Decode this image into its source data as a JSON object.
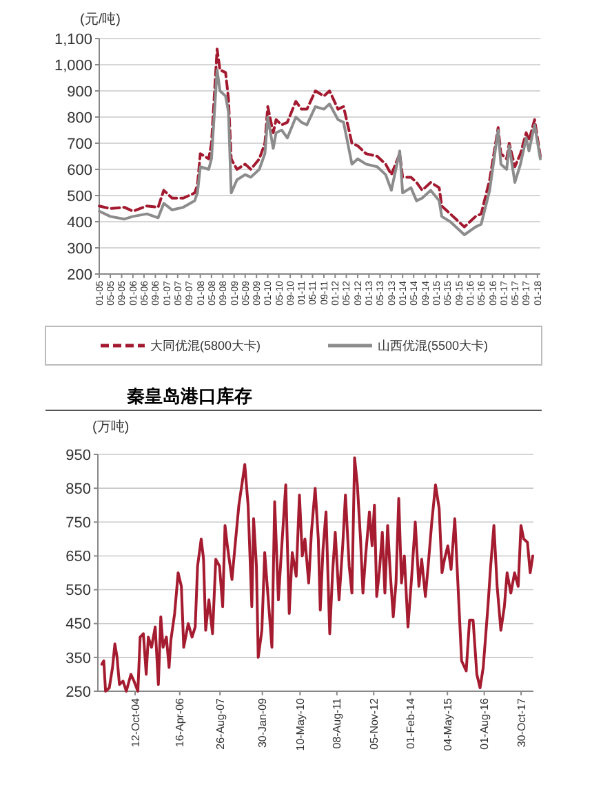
{
  "chart_data": [
    {
      "type": "line",
      "ylabel": "(元/吨)",
      "x": [
        "2005-01",
        "2005-05",
        "2005-10",
        "2006-01",
        "2006-06",
        "2006-10",
        "2006-12",
        "2007-03",
        "2007-07",
        "2007-11",
        "2007-12",
        "2008-01",
        "2008-04",
        "2008-05",
        "2008-07",
        "2008-08",
        "2008-10",
        "2008-11",
        "2008-12",
        "2009-02",
        "2009-05",
        "2009-07",
        "2009-10",
        "2009-12",
        "2010-01",
        "2010-03",
        "2010-04",
        "2010-06",
        "2010-08",
        "2010-11",
        "2011-01",
        "2011-03",
        "2011-06",
        "2011-09",
        "2011-11",
        "2012-02",
        "2012-04",
        "2012-07",
        "2012-09",
        "2012-12",
        "2013-04",
        "2013-07",
        "2013-09",
        "2013-12",
        "2014-01",
        "2014-04",
        "2014-06",
        "2014-08",
        "2014-11",
        "2015-02",
        "2015-03",
        "2015-06",
        "2015-11",
        "2016-03",
        "2016-05",
        "2016-08",
        "2016-11",
        "2016-12",
        "2017-02",
        "2017-03",
        "2017-05",
        "2017-07",
        "2017-09",
        "2017-10",
        "2017-12",
        "2018-02"
      ],
      "series": [
        {
          "name": "大同优混(5800大卡)",
          "color": "#a3192f",
          "line_style": "dashed",
          "values": [
            460,
            450,
            455,
            440,
            460,
            455,
            520,
            490,
            490,
            510,
            540,
            660,
            640,
            700,
            1060,
            980,
            970,
            870,
            640,
            600,
            620,
            600,
            640,
            700,
            840,
            740,
            790,
            770,
            780,
            860,
            830,
            830,
            900,
            880,
            900,
            830,
            840,
            700,
            690,
            660,
            650,
            620,
            580,
            660,
            570,
            570,
            550,
            520,
            550,
            530,
            460,
            430,
            380,
            420,
            430,
            560,
            760,
            660,
            640,
            700,
            610,
            660,
            740,
            710,
            790,
            650
          ]
        },
        {
          "name": "山西优混(5500大卡)",
          "color": "#8c8c8c",
          "line_style": "solid",
          "values": [
            440,
            420,
            410,
            420,
            430,
            415,
            470,
            445,
            455,
            480,
            510,
            610,
            600,
            640,
            980,
            900,
            880,
            820,
            510,
            560,
            580,
            570,
            600,
            660,
            800,
            680,
            740,
            750,
            720,
            800,
            780,
            770,
            840,
            830,
            850,
            790,
            780,
            620,
            640,
            620,
            610,
            580,
            520,
            670,
            510,
            530,
            480,
            490,
            520,
            480,
            420,
            400,
            350,
            380,
            390,
            520,
            750,
            620,
            600,
            690,
            550,
            620,
            720,
            670,
            770,
            640
          ]
        }
      ],
      "xlim": [
        "2005-01",
        "2018-02"
      ],
      "xticks": [
        {
          "value": "2005-01",
          "label": "01-05"
        },
        {
          "value": "2005-05",
          "label": "05-05"
        },
        {
          "value": "2005-09",
          "label": "09-05"
        },
        {
          "value": "2006-01",
          "label": "01-06"
        },
        {
          "value": "2006-05",
          "label": "05-06"
        },
        {
          "value": "2006-09",
          "label": "09-06"
        },
        {
          "value": "2007-01",
          "label": "01-07"
        },
        {
          "value": "2007-05",
          "label": "05-07"
        },
        {
          "value": "2007-09",
          "label": "09-07"
        },
        {
          "value": "2008-01",
          "label": "01-08"
        },
        {
          "value": "2008-05",
          "label": "05-08"
        },
        {
          "value": "2008-09",
          "label": "09-08"
        },
        {
          "value": "2009-01",
          "label": "01-09"
        },
        {
          "value": "2009-05",
          "label": "05-09"
        },
        {
          "value": "2009-09",
          "label": "09-09"
        },
        {
          "value": "2010-01",
          "label": "01-10"
        },
        {
          "value": "2010-05",
          "label": "05-10"
        },
        {
          "value": "2010-09",
          "label": "09-10"
        },
        {
          "value": "2011-01",
          "label": "01-11"
        },
        {
          "value": "2011-05",
          "label": "05-11"
        },
        {
          "value": "2011-09",
          "label": "09-11"
        },
        {
          "value": "2012-01",
          "label": "01-12"
        },
        {
          "value": "2012-05",
          "label": "05-12"
        },
        {
          "value": "2012-09",
          "label": "09-12"
        },
        {
          "value": "2013-01",
          "label": "01-13"
        },
        {
          "value": "2013-05",
          "label": "05-13"
        },
        {
          "value": "2013-09",
          "label": "09-13"
        },
        {
          "value": "2014-01",
          "label": "01-14"
        },
        {
          "value": "2014-05",
          "label": "05-14"
        },
        {
          "value": "2014-09",
          "label": "09-14"
        },
        {
          "value": "2015-01",
          "label": "01-15"
        },
        {
          "value": "2015-05",
          "label": "05-15"
        },
        {
          "value": "2015-09",
          "label": "09-15"
        },
        {
          "value": "2016-01",
          "label": "01-16"
        },
        {
          "value": "2016-05",
          "label": "05-16"
        },
        {
          "value": "2016-09",
          "label": "09-16"
        },
        {
          "value": "2017-01",
          "label": "01-17"
        },
        {
          "value": "2017-05",
          "label": "05-17"
        },
        {
          "value": "2017-09",
          "label": "09-17"
        },
        {
          "value": "2018-01",
          "label": "01-18"
        }
      ],
      "ylim": [
        200,
        1100
      ],
      "yticks": [
        200,
        300,
        400,
        500,
        600,
        700,
        800,
        900,
        {
          "value": 1000,
          "label": "1,000"
        },
        {
          "value": 1100,
          "label": "1,100"
        }
      ],
      "grid": "y",
      "legend": "bottom"
    },
    {
      "type": "line",
      "title": "秦皇岛港口库存",
      "ylabel": "(万吨)",
      "x": [
        "2003-08-28",
        "2003-09-21",
        "2003-10-13",
        "2003-11-28",
        "2004-01-07",
        "2004-02-05",
        "2004-03-03",
        "2004-04-01",
        "2004-05-16",
        "2004-06-25",
        "2004-08-21",
        "2004-09-28",
        "2004-11-15",
        "2004-12-13",
        "2005-01-22",
        "2005-02-26",
        "2005-03-24",
        "2005-05-03",
        "2005-06-17",
        "2005-07-26",
        "2005-08-25",
        "2005-09-22",
        "2005-11-02",
        "2005-12-05",
        "2005-12-27",
        "2006-02-12",
        "2006-03-27",
        "2006-05-06",
        "2006-06-04",
        "2006-07-30",
        "2006-09-15",
        "2006-10-24",
        "2006-11-22",
        "2007-01-06",
        "2007-02-04",
        "2007-03-02",
        "2007-04-11",
        "2007-05-26",
        "2007-07-05",
        "2007-08-20",
        "2007-09-28",
        "2007-10-27",
        "2007-11-25",
        "2008-01-21",
        "2008-02-28",
        "2008-04-15",
        "2008-05-28",
        "2008-06-27",
        "2008-08-07",
        "2008-09-22",
        "2008-10-14",
        "2008-11-18",
        "2008-12-10",
        "2009-01-24",
        "2009-02-28",
        "2009-04-07",
        "2009-05-28",
        "2009-07-01",
        "2009-08-16",
        "2009-09-19",
        "2009-11-15",
        "2009-12-28",
        "2010-02-03",
        "2010-03-24",
        "2010-05-03",
        "2010-06-07",
        "2010-07-10",
        "2010-08-25",
        "2010-09-28",
        "2010-11-13",
        "2010-12-22",
        "2011-01-15",
        "2011-02-18",
        "2011-03-27",
        "2011-05-12",
        "2011-06-16",
        "2011-07-19",
        "2011-09-04",
        "2011-10-19",
        "2011-11-22",
        "2012-01-07",
        "2012-02-10",
        "2012-03-14",
        "2012-04-17",
        "2012-05-26",
        "2012-06-25",
        "2012-07-28",
        "2012-09-13",
        "2012-10-16",
        "2012-11-14",
        "2012-12-12",
        "2013-01-16",
        "2013-02-19",
        "2013-03-23",
        "2013-04-26",
        "2013-05-28",
        "2013-07-04",
        "2013-08-07",
        "2013-09-10",
        "2013-10-14",
        "2013-11-18",
        "2014-01-02",
        "2014-02-17",
        "2014-04-02",
        "2014-05-17",
        "2014-06-20",
        "2014-08-05",
        "2014-09-08",
        "2014-10-23",
        "2014-12-08",
        "2015-01-22",
        "2015-02-26",
        "2015-03-29",
        "2015-05-09",
        "2015-06-18",
        "2015-08-03",
        "2015-09-06",
        "2015-10-26",
        "2015-12-22",
        "2016-02-01",
        "2016-03-16",
        "2016-05-01",
        "2016-06-10",
        "2016-07-19",
        "2016-09-15",
        "2016-10-19",
        "2016-11-28",
        "2017-01-07",
        "2017-02-22",
        "2017-04-06",
        "2017-05-10",
        "2017-06-25",
        "2017-08-10",
        "2017-09-24",
        "2017-10-28",
        "2017-12-01",
        "2018-01-16",
        "2018-02-19",
        "2018-03-23"
      ],
      "series": [
        {
          "color": "#a51c30",
          "values": [
            330,
            340,
            250,
            260,
            320,
            390,
            350,
            270,
            280,
            250,
            300,
            280,
            250,
            410,
            420,
            300,
            410,
            380,
            440,
            270,
            470,
            380,
            410,
            320,
            400,
            480,
            600,
            560,
            380,
            450,
            410,
            440,
            620,
            700,
            640,
            430,
            520,
            420,
            640,
            620,
            500,
            740,
            680,
            580,
            680,
            800,
            870,
            920,
            800,
            500,
            760,
            620,
            350,
            430,
            660,
            540,
            380,
            810,
            520,
            650,
            860,
            480,
            660,
            590,
            830,
            650,
            700,
            570,
            720,
            850,
            700,
            490,
            670,
            780,
            420,
            600,
            720,
            520,
            680,
            830,
            620,
            540,
            940,
            860,
            700,
            540,
            650,
            780,
            680,
            800,
            530,
            610,
            720,
            540,
            740,
            600,
            470,
            570,
            820,
            570,
            650,
            440,
            590,
            750,
            560,
            640,
            530,
            620,
            750,
            860,
            790,
            600,
            640,
            680,
            610,
            760,
            590,
            340,
            310,
            460,
            460,
            300,
            260,
            320,
            500,
            620,
            740,
            560,
            430,
            500,
            600,
            540,
            600,
            560,
            740,
            700,
            690,
            600,
            650
          ]
        }
      ],
      "xlim": [
        "2003-07-10",
        "2018-03-31"
      ],
      "xticks": [
        {
          "value": "2004-10-12",
          "label": "12-Oct-04"
        },
        {
          "value": "2006-04-16",
          "label": "16-Apr-06"
        },
        {
          "value": "2007-08-26",
          "label": "26-Aug-07"
        },
        {
          "value": "2009-01-30",
          "label": "30-Jan-09"
        },
        {
          "value": "2010-05-10",
          "label": "10-May-10"
        },
        {
          "value": "2011-08-08",
          "label": "08-Aug-11"
        },
        {
          "value": "2012-11-05",
          "label": "05-Nov-12"
        },
        {
          "value": "2014-02-01",
          "label": "01-Feb-14"
        },
        {
          "value": "2015-05-04",
          "label": "04-May-15"
        },
        {
          "value": "2016-08-01",
          "label": "01-Aug-16"
        },
        {
          "value": "2017-10-30",
          "label": "30-Oct-17"
        }
      ],
      "ylim": [
        250,
        950
      ],
      "yticks": [
        250,
        350,
        450,
        550,
        650,
        750,
        850,
        950
      ],
      "grid": "y"
    }
  ]
}
